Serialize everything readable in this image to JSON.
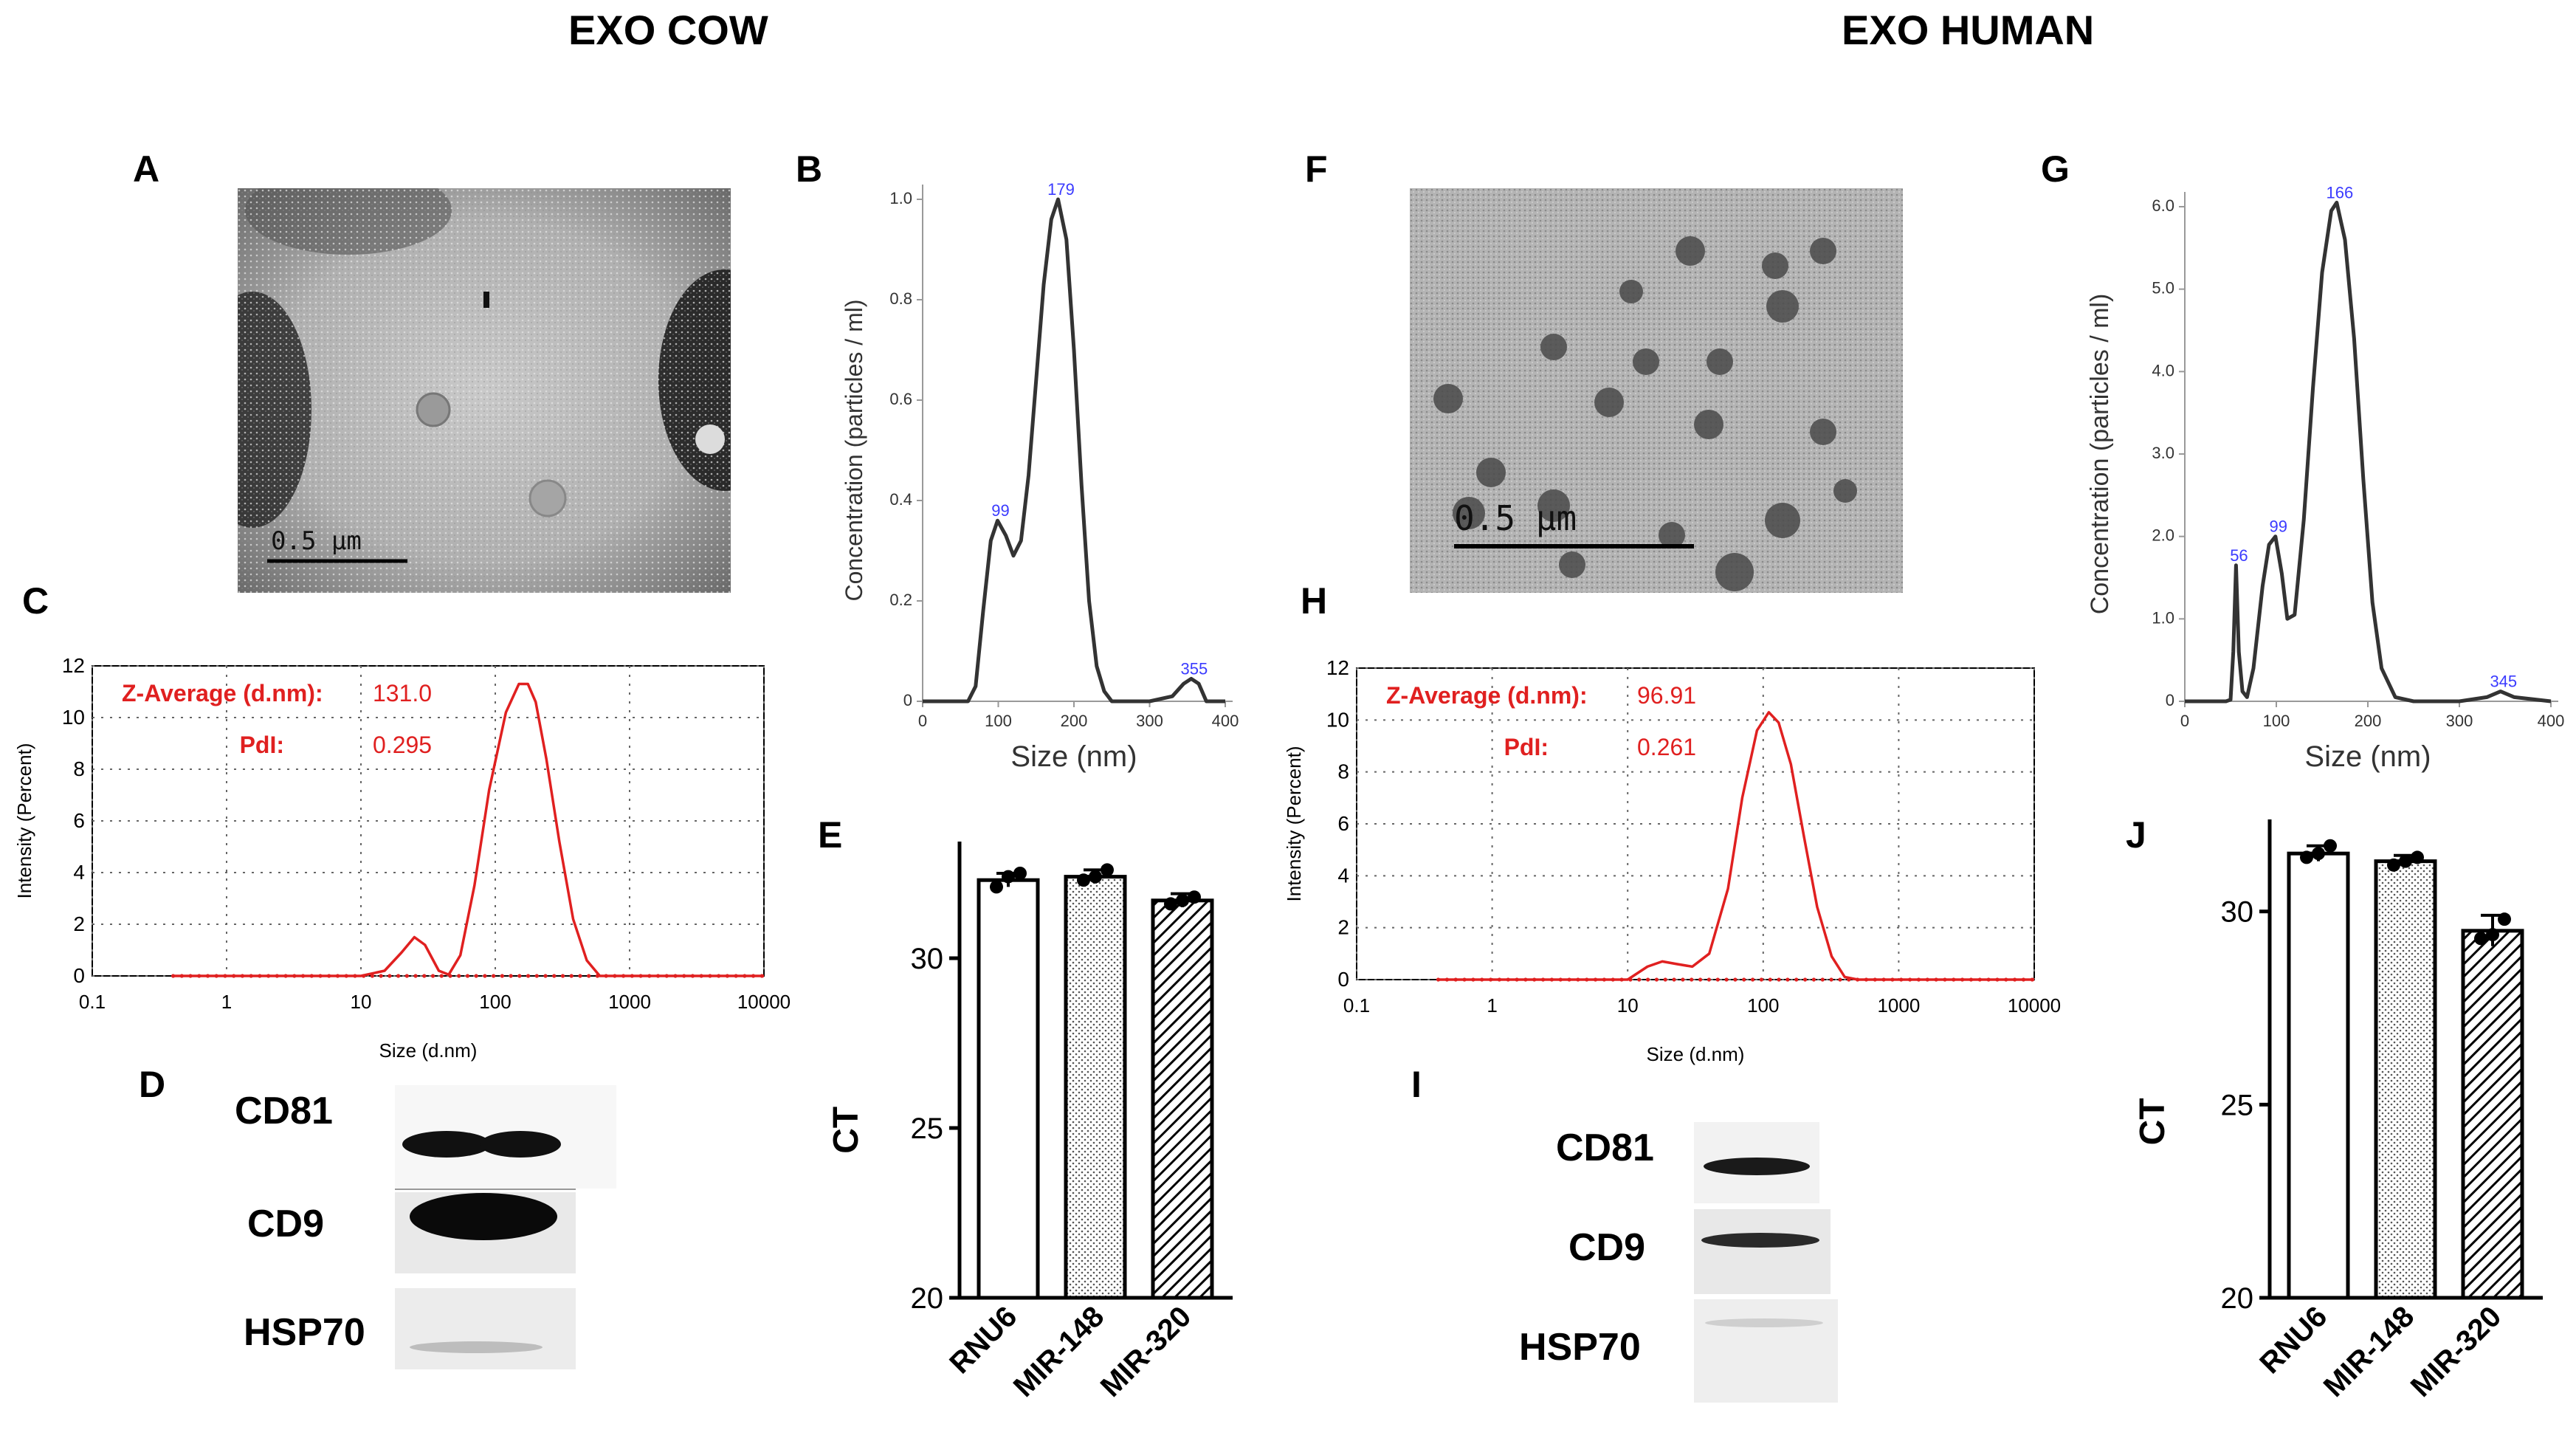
{
  "titles": {
    "cow": "EXO COW",
    "human": "EXO HUMAN"
  },
  "panel_labels": {
    "A": "A",
    "B": "B",
    "C": "C",
    "D": "D",
    "E": "E",
    "F": "F",
    "G": "G",
    "H": "H",
    "I": "I",
    "J": "J"
  },
  "tem": {
    "cow_scale": "0.5 µm",
    "human_scale": "0.5 µm"
  },
  "western_blots": {
    "cow": [
      "CD81",
      "CD9",
      "HSP70"
    ],
    "human": [
      "CD81",
      "CD9",
      "HSP70"
    ]
  },
  "chart_data": [
    {
      "id": "B",
      "type": "line",
      "title": "",
      "xlabel": "Size (nm)",
      "ylabel": "Concentration (particles / ml)",
      "xlim": [
        0,
        400
      ],
      "ylim": [
        0,
        1.0
      ],
      "xticks": [
        0,
        100,
        200,
        300,
        400
      ],
      "yticks": [
        0,
        0.2,
        0.4,
        0.6,
        0.8,
        1.0
      ],
      "ytick_labels": [
        "0",
        "0.2",
        "0.4",
        "0.6",
        "0.8",
        "1.0"
      ],
      "x": [
        0,
        60,
        70,
        80,
        90,
        99,
        110,
        120,
        130,
        140,
        150,
        160,
        170,
        179,
        190,
        200,
        210,
        220,
        230,
        240,
        250,
        300,
        330,
        345,
        355,
        365,
        375,
        400
      ],
      "y": [
        0,
        0,
        0.03,
        0.18,
        0.32,
        0.36,
        0.33,
        0.29,
        0.32,
        0.45,
        0.64,
        0.83,
        0.96,
        1.0,
        0.92,
        0.7,
        0.43,
        0.2,
        0.07,
        0.02,
        0.0,
        0.0,
        0.01,
        0.035,
        0.045,
        0.035,
        0.0,
        0
      ],
      "annotations": [
        "99",
        "179",
        "355"
      ],
      "annotation_x": [
        99,
        179,
        355
      ],
      "annotation_y": [
        0.36,
        1.0,
        0.045
      ]
    },
    {
      "id": "C",
      "type": "line",
      "xscale": "log",
      "xlabel": "Size (d.nm)",
      "ylabel": "Intensity (Percent)",
      "xlim": [
        0.1,
        10000
      ],
      "ylim": [
        0,
        12
      ],
      "xticks": [
        0.1,
        1,
        10,
        100,
        1000,
        10000
      ],
      "xtick_labels": [
        "0.1",
        "1",
        "10",
        "100",
        "1000",
        "10000"
      ],
      "yticks": [
        0,
        2,
        4,
        6,
        8,
        10,
        12
      ],
      "z_average_label": "Z-Average (d.nm):",
      "z_average_value": "131.0",
      "pdi_label": "PdI:",
      "pdi_value": "0.295",
      "x": [
        0.4,
        10,
        15,
        20,
        25,
        30,
        38,
        45,
        55,
        70,
        90,
        120,
        150,
        175,
        200,
        240,
        300,
        380,
        480,
        600,
        10000
      ],
      "y": [
        0,
        0,
        0.2,
        0.9,
        1.5,
        1.2,
        0.2,
        0.05,
        0.8,
        3.5,
        7.2,
        10.2,
        11.3,
        11.3,
        10.6,
        8.4,
        5.2,
        2.2,
        0.6,
        0.0,
        0
      ]
    },
    {
      "id": "E",
      "type": "bar",
      "categories": [
        "RNU6",
        "MIR-148",
        "MIR-320"
      ],
      "values": [
        32.3,
        32.4,
        31.7
      ],
      "errors": [
        0.2,
        0.2,
        0.2
      ],
      "points": [
        [
          32.1,
          32.4,
          32.5
        ],
        [
          32.3,
          32.4,
          32.6
        ],
        [
          31.6,
          31.7,
          31.8
        ]
      ],
      "patterns": [
        "none",
        "dots",
        "hatch"
      ],
      "ylabel": "CT",
      "ylim": [
        20,
        33
      ],
      "yticks": [
        20,
        25,
        30
      ]
    },
    {
      "id": "G",
      "type": "line",
      "xlabel": "Size (nm)",
      "ylabel": "Concentration (particles / ml)",
      "xlim": [
        0,
        400
      ],
      "ylim": [
        0,
        6.0
      ],
      "xticks": [
        0,
        100,
        200,
        300,
        400
      ],
      "yticks": [
        0,
        1,
        2,
        3,
        4,
        5,
        6
      ],
      "ytick_labels": [
        "0",
        "1.0",
        "2.0",
        "3.0",
        "4.0",
        "5.0",
        "6.0"
      ],
      "x": [
        0,
        45,
        50,
        53,
        56,
        59,
        63,
        68,
        75,
        85,
        92,
        99,
        106,
        112,
        120,
        130,
        140,
        150,
        160,
        166,
        175,
        185,
        195,
        205,
        215,
        230,
        250,
        300,
        330,
        345,
        360,
        400
      ],
      "y": [
        0,
        0,
        0.02,
        0.6,
        1.65,
        0.6,
        0.12,
        0.05,
        0.4,
        1.4,
        1.9,
        2.0,
        1.55,
        1.0,
        1.05,
        2.2,
        3.8,
        5.2,
        5.95,
        6.05,
        5.6,
        4.4,
        2.7,
        1.2,
        0.4,
        0.05,
        0,
        0,
        0.05,
        0.12,
        0.05,
        0
      ],
      "annotations": [
        "56",
        "99",
        "166",
        "345"
      ],
      "annotation_x": [
        56,
        99,
        166,
        345
      ],
      "annotation_y": [
        1.65,
        2.0,
        6.05,
        0.12
      ]
    },
    {
      "id": "H",
      "type": "line",
      "xscale": "log",
      "xlabel": "Size (d.nm)",
      "ylabel": "Intensity (Percent)",
      "xlim": [
        0.1,
        10000
      ],
      "ylim": [
        0,
        12
      ],
      "xticks": [
        0.1,
        1,
        10,
        100,
        1000,
        10000
      ],
      "xtick_labels": [
        "0.1",
        "1",
        "10",
        "100",
        "1000",
        "10000"
      ],
      "yticks": [
        0,
        2,
        4,
        6,
        8,
        10,
        12
      ],
      "z_average_label": "Z-Average (d.nm):",
      "z_average_value": "96.91",
      "pdi_label": "PdI:",
      "pdi_value": "0.261",
      "x": [
        0.4,
        10,
        14,
        18,
        23,
        30,
        40,
        55,
        70,
        90,
        110,
        130,
        160,
        200,
        250,
        320,
        400,
        500,
        10000
      ],
      "y": [
        0,
        0,
        0.5,
        0.7,
        0.6,
        0.5,
        1.0,
        3.5,
        7.0,
        9.6,
        10.3,
        9.9,
        8.3,
        5.5,
        2.8,
        0.9,
        0.1,
        0,
        0
      ]
    },
    {
      "id": "J",
      "type": "bar",
      "categories": [
        "RNU6",
        "MIR-148",
        "MIR-320"
      ],
      "values": [
        31.5,
        31.3,
        29.5
      ],
      "errors": [
        0.2,
        0.15,
        0.4
      ],
      "points": [
        [
          31.4,
          31.5,
          31.7
        ],
        [
          31.2,
          31.3,
          31.4
        ],
        [
          29.3,
          29.4,
          29.8
        ]
      ],
      "patterns": [
        "none",
        "dots",
        "hatch"
      ],
      "ylabel": "CT",
      "ylim": [
        20,
        32
      ],
      "yticks": [
        20,
        25,
        30
      ]
    }
  ]
}
